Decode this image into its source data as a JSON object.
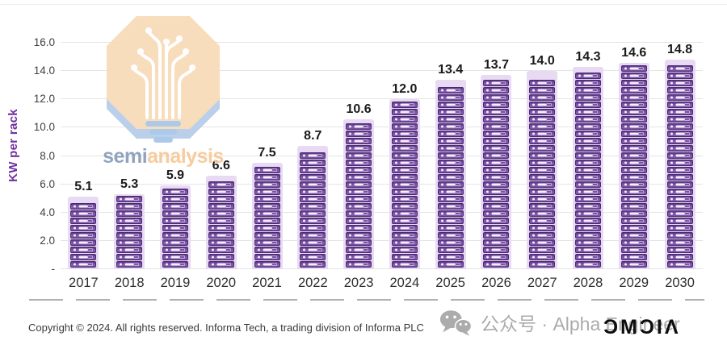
{
  "chart_data": {
    "type": "bar",
    "title": "",
    "ylabel": "KW per rack",
    "xlabel": "",
    "categories": [
      "2017",
      "2018",
      "2019",
      "2020",
      "2021",
      "2022",
      "2023",
      "2024",
      "2025",
      "2026",
      "2027",
      "2028",
      "2029",
      "2030"
    ],
    "values": [
      5.1,
      5.3,
      5.9,
      6.6,
      7.5,
      8.7,
      10.6,
      12.0,
      13.4,
      13.7,
      14.0,
      14.3,
      14.6,
      14.8
    ],
    "value_label_decimals": 1,
    "ylim": [
      0,
      16
    ],
    "ytick_step": 2,
    "ytick_labels": [
      "-",
      "2.0",
      "4.0",
      "6.0",
      "8.0",
      "10.0",
      "12.0",
      "14.0",
      "16.0"
    ],
    "grid": true,
    "legend_position": "none",
    "bar_style": "stacked-server-rack-units"
  },
  "colors": {
    "bar_unit": "#7a50a3",
    "bar_unit_border": "#4a2a72",
    "bar_background": "#e9daf4",
    "axis_title": "#7030a0",
    "tick_label": "#3f3f3f",
    "value_label": "#1a1a1a",
    "gridline": "#e4e4e4",
    "watermark_gray": "#ababab",
    "logo_octagon": "#f8dcba",
    "logo_shadow": "#b7cee9",
    "logo_semi_text": "#8ba0bb",
    "logo_analysis_text": "#f6ca99"
  },
  "watermark_logo": {
    "word_semi": "semi",
    "word_analysis": "analysis"
  },
  "footer": {
    "copyright": "Copyright © 2024. All rights reserved. Informa Tech, a trading division of Informa PLC",
    "wechat_watermark": "公众号 · Alpha Engineer",
    "omdia_logo": "ƆMϽIΛ"
  }
}
